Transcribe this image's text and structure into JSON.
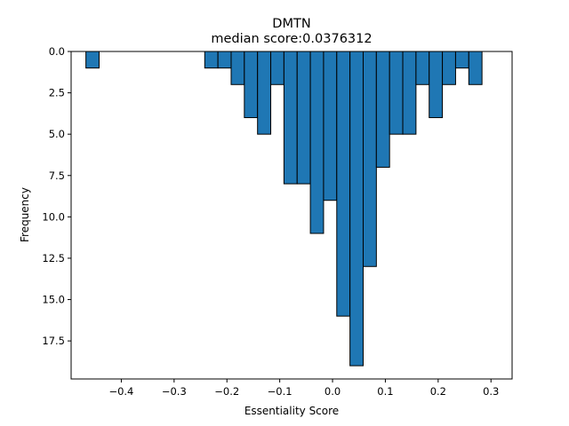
{
  "chart_data": {
    "type": "bar",
    "title": "DMTN",
    "subtitle": "median score:0.0376312",
    "xlabel": "Essentiality Score",
    "ylabel": "Frequency",
    "xlim": [
      -0.495,
      0.34
    ],
    "ylim": [
      19.8,
      0
    ],
    "y_inverted": true,
    "grid": false,
    "legend": "none",
    "bar_color": "#1f77b4",
    "bin_width": 0.025,
    "x_ticks": [
      -0.4,
      -0.3,
      -0.2,
      -0.1,
      0.0,
      0.1,
      0.2,
      0.3
    ],
    "x_tick_labels": [
      "−0.4",
      "−0.3",
      "−0.2",
      "−0.1",
      "0.0",
      "0.1",
      "0.2",
      "0.3"
    ],
    "y_ticks": [
      0,
      2.5,
      5,
      7.5,
      10,
      12.5,
      15,
      17.5
    ],
    "y_tick_labels": [
      "0.0",
      "2.5",
      "5.0",
      "7.5",
      "10.0",
      "12.5",
      "15.0",
      "17.5"
    ],
    "bins": [
      {
        "x": -0.4545,
        "value": 1
      },
      {
        "x": -0.2295,
        "value": 1
      },
      {
        "x": -0.2045,
        "value": 1
      },
      {
        "x": -0.1795,
        "value": 2
      },
      {
        "x": -0.1545,
        "value": 4
      },
      {
        "x": -0.1295,
        "value": 5
      },
      {
        "x": -0.1045,
        "value": 2
      },
      {
        "x": -0.0795,
        "value": 8
      },
      {
        "x": -0.0545,
        "value": 8
      },
      {
        "x": -0.0295,
        "value": 11
      },
      {
        "x": -0.0045,
        "value": 9
      },
      {
        "x": 0.0205,
        "value": 16
      },
      {
        "x": 0.0455,
        "value": 19
      },
      {
        "x": 0.0705,
        "value": 13
      },
      {
        "x": 0.0955,
        "value": 7
      },
      {
        "x": 0.1205,
        "value": 5
      },
      {
        "x": 0.1455,
        "value": 5
      },
      {
        "x": 0.1705,
        "value": 2
      },
      {
        "x": 0.1955,
        "value": 4
      },
      {
        "x": 0.2205,
        "value": 2
      },
      {
        "x": 0.2455,
        "value": 1
      },
      {
        "x": 0.2705,
        "value": 2
      }
    ]
  }
}
